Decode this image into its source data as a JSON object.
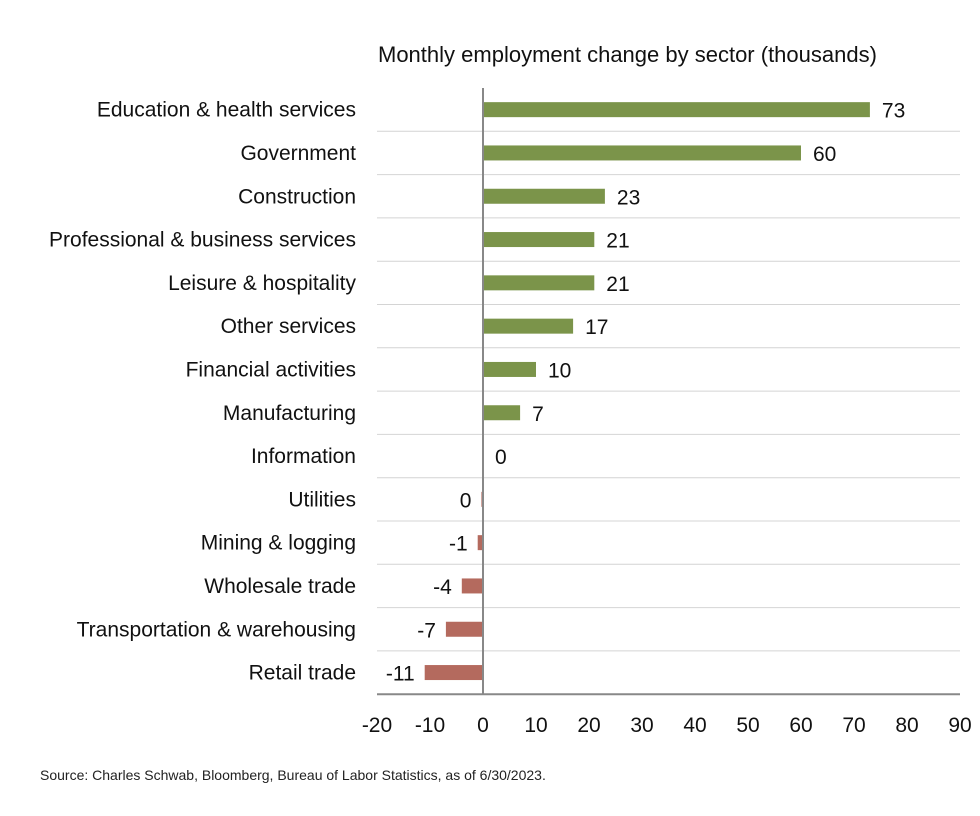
{
  "chart_data": {
    "type": "bar",
    "orientation": "horizontal",
    "title": "Monthly employment change by sector (thousands)",
    "categories": [
      "Education & health services",
      "Government",
      "Construction",
      "Professional & business services",
      "Leisure & hospitality",
      "Other services",
      "Financial activities",
      "Manufacturing",
      "Information",
      "Utilities",
      "Mining & logging",
      "Wholesale trade",
      "Transportation & warehousing",
      "Retail trade"
    ],
    "values": [
      73,
      60,
      23,
      21,
      21,
      17,
      10,
      7,
      0,
      -0.3,
      -1,
      -4,
      -7,
      -11
    ],
    "data_labels": [
      "73",
      "60",
      "23",
      "21",
      "21",
      "17",
      "10",
      "7",
      "0",
      "0",
      "-1",
      "-4",
      "-7",
      "-11"
    ],
    "xlim": [
      -20,
      90
    ],
    "xticks": [
      "-20",
      "-10",
      "0",
      "10",
      "20",
      "30",
      "40",
      "50",
      "60",
      "70",
      "80",
      "90"
    ],
    "xlabel": "",
    "ylabel": "",
    "grid": "horizontal separators between categories",
    "legend": "none",
    "colors": {
      "positive": "#7b944a",
      "negative": "#b46a5e",
      "axis": "#888888",
      "grid": "#d4d4d4"
    }
  },
  "source_note": "Source: Charles Schwab, Bloomberg, Bureau of Labor Statistics, as of 6/30/2023."
}
